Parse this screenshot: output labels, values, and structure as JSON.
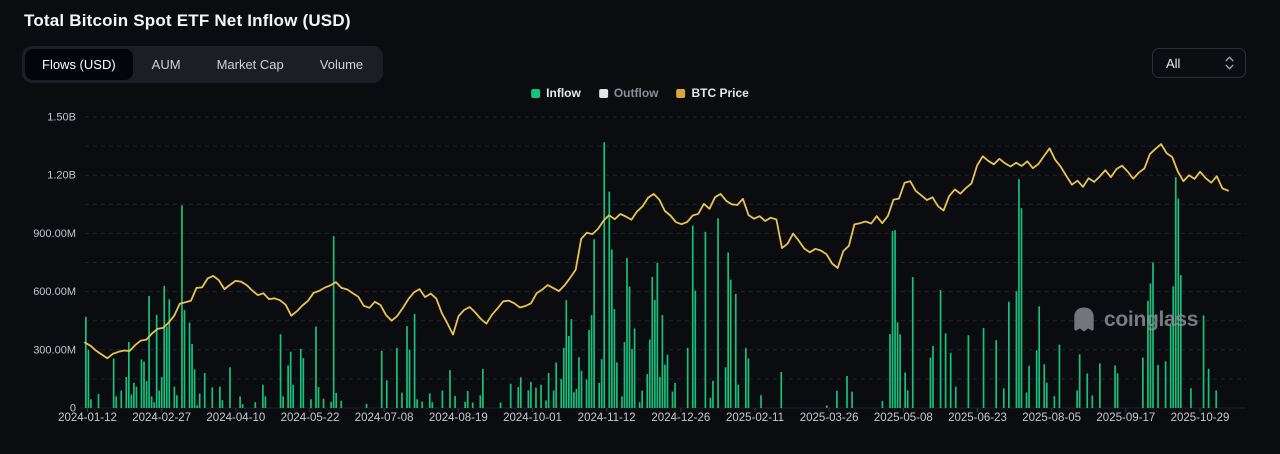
{
  "header": {
    "title": "Total Bitcoin Spot ETF Net Inflow (USD)"
  },
  "tabs": [
    {
      "label": "Flows (USD)",
      "active": true
    },
    {
      "label": "AUM",
      "active": false
    },
    {
      "label": "Market Cap",
      "active": false
    },
    {
      "label": "Volume",
      "active": false
    }
  ],
  "range_select": {
    "value": "All"
  },
  "legend": [
    {
      "label": "Inflow",
      "color": "#17c07c",
      "muted": false
    },
    {
      "label": "Outflow",
      "color": "#e2e4e6",
      "muted": true
    },
    {
      "label": "BTC Price",
      "color": "#d9a63b",
      "muted": false
    }
  ],
  "watermark": {
    "label": "coinglass"
  },
  "chart_data": {
    "type": "bar",
    "title": "Total Bitcoin Spot ETF Net Inflow (USD)",
    "grid": "dashed-horizontal",
    "legend_position": "top-center",
    "y_axis": {
      "ticks_M": [
        0,
        300,
        600,
        900,
        1200,
        1500
      ],
      "tick_labels": [
        "0",
        "300.00M",
        "600.00M",
        "900.00M",
        "1.20B",
        "1.50B"
      ],
      "grid_step_M": 150,
      "max_M": 1500
    },
    "x_axis": {
      "tick_labels": [
        "2024-01-12",
        "2024-02-27",
        "2024-04-10",
        "2024-05-22",
        "2024-07-08",
        "2024-08-19",
        "2024-10-01",
        "2024-11-12",
        "2024-12-26",
        "2025-02-11",
        "2025-03-26",
        "2025-05-08",
        "2025-06-23",
        "2025-08-05",
        "2025-09-17",
        "2025-10-29"
      ]
    },
    "series": [
      {
        "name": "Inflow",
        "type": "bar",
        "unit": "USD millions",
        "color": "#17c07c",
        "values": [
          470,
          300,
          45,
          0,
          0,
          72,
          0,
          0,
          0,
          0,
          0,
          255,
          60,
          0,
          90,
          0,
          160,
          340,
          70,
          130,
          110,
          0,
          250,
          240,
          140,
          577,
          60,
          30,
          480,
          90,
          160,
          630,
          420,
          560,
          0,
          110,
          66,
          0,
          1045,
          505,
          0,
          440,
          330,
          200,
          15,
          75,
          0,
          180,
          0,
          0,
          106,
          0,
          0,
          110,
          40,
          0,
          0,
          210,
          0,
          0,
          0,
          60,
          20,
          0,
          0,
          0,
          0,
          30,
          0,
          0,
          120,
          60,
          0,
          0,
          0,
          0,
          0,
          380,
          60,
          0,
          220,
          290,
          120,
          0,
          0,
          305,
          257,
          0,
          0,
          45,
          0,
          420,
          108,
          0,
          48,
          0,
          0,
          31,
          886,
          78,
          0,
          37,
          0,
          0,
          0,
          0,
          0,
          0,
          0,
          0,
          0,
          21,
          0,
          0,
          0,
          0,
          0,
          295,
          0,
          143,
          0,
          0,
          0,
          310,
          0,
          79,
          0,
          422,
          301,
          0,
          485,
          45,
          0,
          33,
          0,
          0,
          75,
          30,
          0,
          0,
          0,
          90,
          0,
          0,
          195,
          0,
          62,
          0,
          0,
          0,
          32,
          88,
          0,
          28,
          0,
          0,
          65,
          202,
          0,
          0,
          0,
          0,
          0,
          0,
          28,
          0,
          0,
          0,
          125,
          0,
          0,
          108,
          158,
          0,
          0,
          92,
          135,
          0,
          105,
          0,
          120,
          0,
          39,
          180,
          0,
          90,
          235,
          0,
          150,
          310,
          556,
          371,
          458,
          81,
          99,
          262,
          192,
          0,
          148,
          402,
          479,
          870,
          0,
          130,
          252,
          1370,
          0,
          1115,
          817,
          510,
          235,
          0,
          60,
          340,
          773,
          626,
          305,
          410,
          0,
          30,
          90,
          0,
          175,
          353,
          676,
          557,
          748,
          160,
          479,
          223,
          275,
          0,
          85,
          130,
          0,
          0,
          0,
          0,
          310,
          0,
          940,
          605,
          0,
          0,
          0,
          908,
          0,
          53,
          140,
          0,
          978,
          0,
          0,
          210,
          802,
          662,
          0,
          588,
          120,
          0,
          0,
          310,
          255,
          0,
          0,
          0,
          0,
          66,
          0,
          0,
          0,
          0,
          0,
          0,
          0,
          186,
          0,
          0,
          0,
          0,
          0,
          0,
          0,
          0,
          0,
          0,
          0,
          0,
          0,
          0,
          0,
          0,
          0,
          13,
          0,
          0,
          0,
          89,
          0,
          0,
          0,
          165,
          0,
          84,
          0,
          0,
          0,
          0,
          0,
          0,
          0,
          0,
          0,
          0,
          0,
          36,
          0,
          0,
          381,
          912,
          917,
          442,
          380,
          0,
          183,
          91,
          0,
          675,
          0,
          0,
          0,
          0,
          0,
          0,
          260,
          320,
          0,
          0,
          608,
          0,
          385,
          0,
          284,
          0,
          110,
          0,
          0,
          0,
          0,
          375,
          0,
          0,
          0,
          0,
          0,
          412,
          0,
          0,
          0,
          0,
          350,
          0,
          0,
          101,
          0,
          548,
          0,
          0,
          602,
          1180,
          1030,
          0,
          80,
          218,
          0,
          0,
          297,
          524,
          0,
          226,
          130,
          0,
          0,
          61,
          0,
          327,
          0,
          0,
          0,
          0,
          0,
          0,
          91,
          277,
          0,
          0,
          178,
          0,
          65,
          0,
          0,
          230,
          0,
          0,
          0,
          0,
          0,
          219,
          179,
          0,
          0,
          0,
          0,
          0,
          0,
          0,
          0,
          0,
          260,
          0,
          553,
          642,
          750,
          0,
          222,
          0,
          0,
          241,
          0,
          429,
          627,
          1190,
          1080,
          685,
          0,
          0,
          0,
          102,
          0,
          0,
          0,
          0,
          477,
          0,
          202,
          0,
          0,
          90,
          0,
          0,
          0,
          0
        ]
      },
      {
        "name": "BTC Price",
        "type": "line",
        "unit": "USD thousands",
        "color": "#e9c352",
        "render_range_K": [
          20,
          137
        ],
        "values": [
          46.3,
          45,
          43,
          41.5,
          40,
          41.8,
          42.6,
          43.1,
          42.9,
          45.3,
          47.1,
          47.5,
          49.9,
          51.8,
          52.2,
          54.3,
          57.1,
          61.9,
          62.5,
          63.1,
          68.3,
          68.5,
          72.1,
          73.1,
          71.4,
          67.8,
          69.5,
          71.1,
          70.8,
          69.4,
          67.2,
          65.4,
          66.1,
          63.8,
          64.1,
          63.3,
          61.5,
          57.1,
          58.9,
          61.2,
          63.1,
          66.3,
          67.1,
          68.4,
          69.3,
          70.6,
          68.3,
          67.7,
          66.2,
          64.8,
          61.1,
          60.3,
          62.7,
          61.4,
          57.3,
          55.1,
          57.0,
          60.2,
          63.8,
          66.5,
          67.8,
          64.6,
          66.0,
          64.0,
          58.2,
          54.0,
          49.5,
          57.0,
          59.4,
          60.6,
          58.4,
          55.8,
          53.9,
          57.5,
          60.1,
          62.9,
          63.2,
          62.1,
          60.4,
          61.0,
          62.1,
          66.1,
          67.6,
          69.4,
          68.2,
          67.0,
          69.3,
          72.3,
          75.6,
          88.0,
          90.5,
          89.9,
          92.0,
          95.3,
          97.5,
          95.9,
          98.0,
          97.0,
          95.7,
          99.0,
          101.1,
          104.5,
          106.1,
          103.8,
          99.2,
          97.4,
          94.7,
          93.9,
          94.8,
          97.4,
          98.1,
          102.1,
          100.1,
          104.7,
          106.1,
          103.3,
          101.9,
          101.6,
          104.1,
          97.6,
          96.1,
          97.1,
          95.2,
          96.5,
          95.8,
          84.3,
          86.0,
          90.1,
          87.3,
          84.1,
          82.6,
          84.0,
          83.3,
          81.8,
          78.1,
          76.3,
          83.1,
          85.2,
          93.8,
          94.3,
          95.0,
          94.2,
          97.1,
          94.3,
          97.2,
          103.8,
          104.2,
          110.6,
          111.2,
          107.3,
          105.5,
          103.6,
          104.7,
          101.1,
          99.4,
          105.2,
          107.9,
          106.2,
          108.4,
          110.3,
          117.5,
          121.2,
          119.4,
          118.0,
          120.2,
          118.4,
          117.1,
          118.6,
          117.3,
          119.2,
          116.4,
          118.1,
          121.3,
          124.4,
          119.8,
          117.0,
          113.3,
          109.8,
          111.4,
          108.9,
          112.4,
          110.9,
          113.1,
          115.6,
          112.8,
          116.1,
          117.4,
          115.1,
          112.2,
          114.6,
          116.3,
          122.1,
          124.2,
          126.1,
          122.4,
          120.9,
          115.1,
          111.2,
          113.6,
          112.1,
          115.0,
          112.4,
          110.6,
          113.2,
          108.3,
          107.4
        ]
      }
    ]
  }
}
